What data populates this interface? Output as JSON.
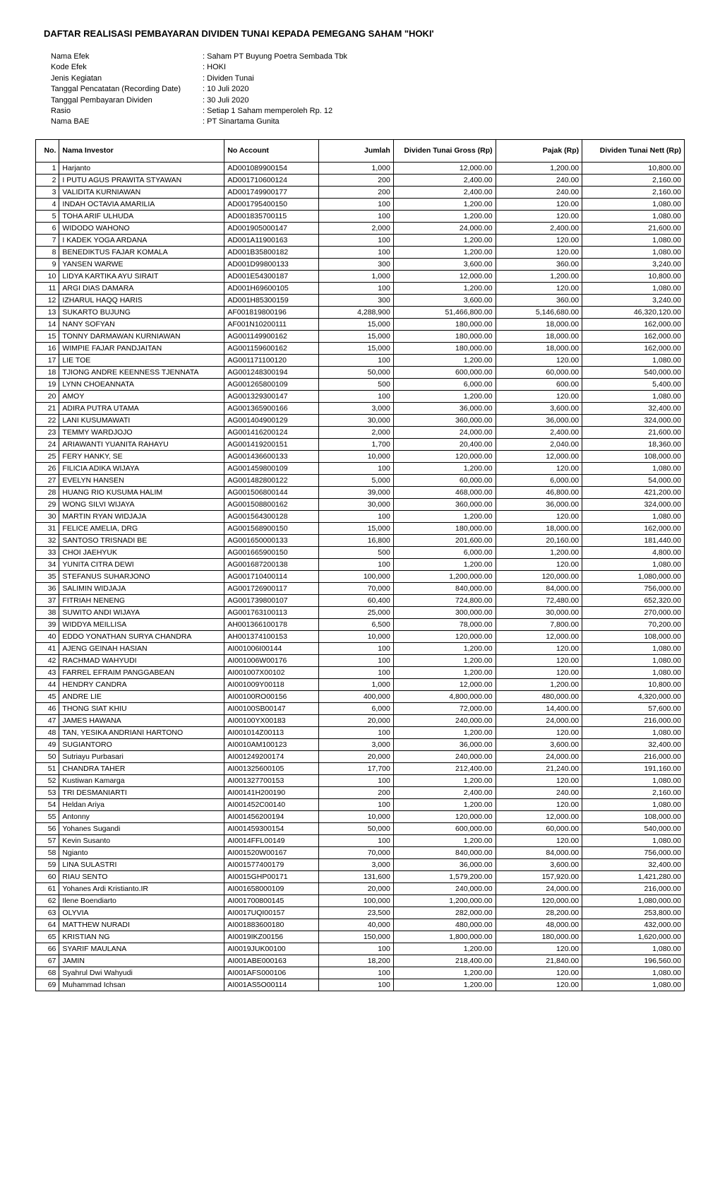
{
  "title": "DAFTAR REALISASI PEMBAYARAN DIVIDEN TUNAI KEPADA PEMEGANG SAHAM \"HOKI'",
  "info": {
    "rows": [
      {
        "label": "Nama Efek",
        "value": "Saham PT Buyung Poetra Sembada Tbk"
      },
      {
        "label": "Kode Efek",
        "value": "HOKI"
      },
      {
        "label": "Jenis Kegiatan",
        "value": "Dividen Tunai"
      },
      {
        "label": "Tanggal Pencatatan (Recording Date)",
        "value": "10 Juli 2020"
      },
      {
        "label": "Tanggal Pembayaran Dividen",
        "value": "30 Juli 2020"
      },
      {
        "label": "Rasio",
        "value": "Setiap 1 Saham memperoleh Rp. 12"
      },
      {
        "label": "Nama BAE",
        "value": "PT Sinartama Gunita"
      }
    ]
  },
  "table": {
    "headers": {
      "no": "No.",
      "nama": "Nama Investor",
      "acc": "No Account",
      "jumlah": "Jumlah",
      "gross": "Dividen Tunai Gross (Rp)",
      "pajak": "Pajak (Rp)",
      "nett": "Dividen Tunai Nett (Rp)"
    },
    "rows": [
      {
        "no": "1",
        "nama": "Harjanto",
        "acc": "AD001089900154",
        "jumlah": "1,000",
        "gross": "12,000.00",
        "pajak": "1,200.00",
        "nett": "10,800.00"
      },
      {
        "no": "2",
        "nama": "I PUTU AGUS PRAWITA STYAWAN",
        "acc": "AD001710600124",
        "jumlah": "200",
        "gross": "2,400.00",
        "pajak": "240.00",
        "nett": "2,160.00"
      },
      {
        "no": "3",
        "nama": "VALIDITA KURNIAWAN",
        "acc": "AD001749900177",
        "jumlah": "200",
        "gross": "2,400.00",
        "pajak": "240.00",
        "nett": "2,160.00"
      },
      {
        "no": "4",
        "nama": "INDAH OCTAVIA AMARILIA",
        "acc": "AD001795400150",
        "jumlah": "100",
        "gross": "1,200.00",
        "pajak": "120.00",
        "nett": "1,080.00"
      },
      {
        "no": "5",
        "nama": "TOHA ARIF ULHUDA",
        "acc": "AD001835700115",
        "jumlah": "100",
        "gross": "1,200.00",
        "pajak": "120.00",
        "nett": "1,080.00"
      },
      {
        "no": "6",
        "nama": "WIDODO WAHONO",
        "acc": "AD001905000147",
        "jumlah": "2,000",
        "gross": "24,000.00",
        "pajak": "2,400.00",
        "nett": "21,600.00"
      },
      {
        "no": "7",
        "nama": "I KADEK YOGA ARDANA",
        "acc": "AD001A11900163",
        "jumlah": "100",
        "gross": "1,200.00",
        "pajak": "120.00",
        "nett": "1,080.00"
      },
      {
        "no": "8",
        "nama": "BENEDIKTUS FAJAR KOMALA",
        "acc": "AD001B35800182",
        "jumlah": "100",
        "gross": "1,200.00",
        "pajak": "120.00",
        "nett": "1,080.00"
      },
      {
        "no": "9",
        "nama": "YANSEN WARWE",
        "acc": "AD001D99800133",
        "jumlah": "300",
        "gross": "3,600.00",
        "pajak": "360.00",
        "nett": "3,240.00"
      },
      {
        "no": "10",
        "nama": "LIDYA KARTIKA AYU SIRAIT",
        "acc": "AD001E54300187",
        "jumlah": "1,000",
        "gross": "12,000.00",
        "pajak": "1,200.00",
        "nett": "10,800.00"
      },
      {
        "no": "11",
        "nama": "ARGI DIAS DAMARA",
        "acc": "AD001H69600105",
        "jumlah": "100",
        "gross": "1,200.00",
        "pajak": "120.00",
        "nett": "1,080.00"
      },
      {
        "no": "12",
        "nama": "IZHARUL HAQQ HARIS",
        "acc": "AD001H85300159",
        "jumlah": "300",
        "gross": "3,600.00",
        "pajak": "360.00",
        "nett": "3,240.00"
      },
      {
        "no": "13",
        "nama": "SUKARTO BUJUNG",
        "acc": "AF001819800196",
        "jumlah": "4,288,900",
        "gross": "51,466,800.00",
        "pajak": "5,146,680.00",
        "nett": "46,320,120.00"
      },
      {
        "no": "14",
        "nama": "NANY SOFYAN",
        "acc": "AF001N10200111",
        "jumlah": "15,000",
        "gross": "180,000.00",
        "pajak": "18,000.00",
        "nett": "162,000.00"
      },
      {
        "no": "15",
        "nama": "TONNY DARMAWAN KURNIAWAN",
        "acc": "AG001149900162",
        "jumlah": "15,000",
        "gross": "180,000.00",
        "pajak": "18,000.00",
        "nett": "162,000.00"
      },
      {
        "no": "16",
        "nama": "WIMPIE FAJAR PANDJAITAN",
        "acc": "AG001159600162",
        "jumlah": "15,000",
        "gross": "180,000.00",
        "pajak": "18,000.00",
        "nett": "162,000.00"
      },
      {
        "no": "17",
        "nama": "LIE TOE",
        "acc": "AG001171100120",
        "jumlah": "100",
        "gross": "1,200.00",
        "pajak": "120.00",
        "nett": "1,080.00"
      },
      {
        "no": "18",
        "nama": "TJIONG ANDRE KEENNESS TJENNATA",
        "acc": "AG001248300194",
        "jumlah": "50,000",
        "gross": "600,000.00",
        "pajak": "60,000.00",
        "nett": "540,000.00"
      },
      {
        "no": "19",
        "nama": "LYNN CHOEANNATA",
        "acc": "AG001265800109",
        "jumlah": "500",
        "gross": "6,000.00",
        "pajak": "600.00",
        "nett": "5,400.00"
      },
      {
        "no": "20",
        "nama": "AMOY",
        "acc": "AG001329300147",
        "jumlah": "100",
        "gross": "1,200.00",
        "pajak": "120.00",
        "nett": "1,080.00"
      },
      {
        "no": "21",
        "nama": "ADIRA PUTRA UTAMA",
        "acc": "AG001365900166",
        "jumlah": "3,000",
        "gross": "36,000.00",
        "pajak": "3,600.00",
        "nett": "32,400.00"
      },
      {
        "no": "22",
        "nama": "LANI KUSUMAWATI",
        "acc": "AG001404900129",
        "jumlah": "30,000",
        "gross": "360,000.00",
        "pajak": "36,000.00",
        "nett": "324,000.00"
      },
      {
        "no": "23",
        "nama": "TEMMY WARDJOJO",
        "acc": "AG001416200124",
        "jumlah": "2,000",
        "gross": "24,000.00",
        "pajak": "2,400.00",
        "nett": "21,600.00"
      },
      {
        "no": "24",
        "nama": "ARIAWANTI YUANITA RAHAYU",
        "acc": "AG001419200151",
        "jumlah": "1,700",
        "gross": "20,400.00",
        "pajak": "2,040.00",
        "nett": "18,360.00"
      },
      {
        "no": "25",
        "nama": "FERY HANKY, SE",
        "acc": "AG001436600133",
        "jumlah": "10,000",
        "gross": "120,000.00",
        "pajak": "12,000.00",
        "nett": "108,000.00"
      },
      {
        "no": "26",
        "nama": "FILICIA ADIKA WIJAYA",
        "acc": "AG001459800109",
        "jumlah": "100",
        "gross": "1,200.00",
        "pajak": "120.00",
        "nett": "1,080.00"
      },
      {
        "no": "27",
        "nama": "EVELYN HANSEN",
        "acc": "AG001482800122",
        "jumlah": "5,000",
        "gross": "60,000.00",
        "pajak": "6,000.00",
        "nett": "54,000.00"
      },
      {
        "no": "28",
        "nama": "HUANG RIO KUSUMA HALIM",
        "acc": "AG001506800144",
        "jumlah": "39,000",
        "gross": "468,000.00",
        "pajak": "46,800.00",
        "nett": "421,200.00"
      },
      {
        "no": "29",
        "nama": "WONG SILVI WIJAYA",
        "acc": "AG001508800162",
        "jumlah": "30,000",
        "gross": "360,000.00",
        "pajak": "36,000.00",
        "nett": "324,000.00"
      },
      {
        "no": "30",
        "nama": "MARTIN RYAN WIDJAJA",
        "acc": "AG001564300128",
        "jumlah": "100",
        "gross": "1,200.00",
        "pajak": "120.00",
        "nett": "1,080.00"
      },
      {
        "no": "31",
        "nama": "FELICE AMELIA, DRG",
        "acc": "AG001568900150",
        "jumlah": "15,000",
        "gross": "180,000.00",
        "pajak": "18,000.00",
        "nett": "162,000.00"
      },
      {
        "no": "32",
        "nama": "SANTOSO TRISNADI BE",
        "acc": "AG001650000133",
        "jumlah": "16,800",
        "gross": "201,600.00",
        "pajak": "20,160.00",
        "nett": "181,440.00"
      },
      {
        "no": "33",
        "nama": "CHOI JAEHYUK",
        "acc": "AG001665900150",
        "jumlah": "500",
        "gross": "6,000.00",
        "pajak": "1,200.00",
        "nett": "4,800.00"
      },
      {
        "no": "34",
        "nama": "YUNITA CITRA DEWI",
        "acc": "AG001687200138",
        "jumlah": "100",
        "gross": "1,200.00",
        "pajak": "120.00",
        "nett": "1,080.00"
      },
      {
        "no": "35",
        "nama": "STEFANUS SUHARJONO",
        "acc": "AG001710400114",
        "jumlah": "100,000",
        "gross": "1,200,000.00",
        "pajak": "120,000.00",
        "nett": "1,080,000.00"
      },
      {
        "no": "36",
        "nama": "SALIMIN WIDJAJA",
        "acc": "AG001726900117",
        "jumlah": "70,000",
        "gross": "840,000.00",
        "pajak": "84,000.00",
        "nett": "756,000.00"
      },
      {
        "no": "37",
        "nama": "FITRIAH NENENG",
        "acc": "AG001739800107",
        "jumlah": "60,400",
        "gross": "724,800.00",
        "pajak": "72,480.00",
        "nett": "652,320.00"
      },
      {
        "no": "38",
        "nama": "SUWITO ANDI WIJAYA",
        "acc": "AG001763100113",
        "jumlah": "25,000",
        "gross": "300,000.00",
        "pajak": "30,000.00",
        "nett": "270,000.00"
      },
      {
        "no": "39",
        "nama": "WIDDYA MEILLISA",
        "acc": "AH001366100178",
        "jumlah": "6,500",
        "gross": "78,000.00",
        "pajak": "7,800.00",
        "nett": "70,200.00"
      },
      {
        "no": "40",
        "nama": "EDDO YONATHAN SURYA CHANDRA",
        "acc": "AH001374100153",
        "jumlah": "10,000",
        "gross": "120,000.00",
        "pajak": "12,000.00",
        "nett": "108,000.00"
      },
      {
        "no": "41",
        "nama": "AJENG GEINAH HASIAN",
        "acc": "AI001006I00144",
        "jumlah": "100",
        "gross": "1,200.00",
        "pajak": "120.00",
        "nett": "1,080.00"
      },
      {
        "no": "42",
        "nama": "RACHMAD WAHYUDI",
        "acc": "AI001006W00176",
        "jumlah": "100",
        "gross": "1,200.00",
        "pajak": "120.00",
        "nett": "1,080.00"
      },
      {
        "no": "43",
        "nama": "FARREL EFRAIM PANGGABEAN",
        "acc": "AI001007X00102",
        "jumlah": "100",
        "gross": "1,200.00",
        "pajak": "120.00",
        "nett": "1,080.00"
      },
      {
        "no": "44",
        "nama": "HENDRY CANDRA",
        "acc": "AI001009Y00118",
        "jumlah": "1,000",
        "gross": "12,000.00",
        "pajak": "1,200.00",
        "nett": "10,800.00"
      },
      {
        "no": "45",
        "nama": "ANDRE LIE",
        "acc": "AI00100RO00156",
        "jumlah": "400,000",
        "gross": "4,800,000.00",
        "pajak": "480,000.00",
        "nett": "4,320,000.00"
      },
      {
        "no": "46",
        "nama": "THONG SIAT KHIU",
        "acc": "AI00100SB00147",
        "jumlah": "6,000",
        "gross": "72,000.00",
        "pajak": "14,400.00",
        "nett": "57,600.00"
      },
      {
        "no": "47",
        "nama": "JAMES HAWANA",
        "acc": "AI00100YX00183",
        "jumlah": "20,000",
        "gross": "240,000.00",
        "pajak": "24,000.00",
        "nett": "216,000.00"
      },
      {
        "no": "48",
        "nama": "TAN, YESIKA ANDRIANI HARTONO",
        "acc": "AI001014Z00113",
        "jumlah": "100",
        "gross": "1,200.00",
        "pajak": "120.00",
        "nett": "1,080.00"
      },
      {
        "no": "49",
        "nama": "SUGIANTORO",
        "acc": "AI0010AM100123",
        "jumlah": "3,000",
        "gross": "36,000.00",
        "pajak": "3,600.00",
        "nett": "32,400.00"
      },
      {
        "no": "50",
        "nama": "Sutriayu Purbasari",
        "acc": "AI001249200174",
        "jumlah": "20,000",
        "gross": "240,000.00",
        "pajak": "24,000.00",
        "nett": "216,000.00"
      },
      {
        "no": "51",
        "nama": "CHANDRA TAHER",
        "acc": "AI001325600105",
        "jumlah": "17,700",
        "gross": "212,400.00",
        "pajak": "21,240.00",
        "nett": "191,160.00"
      },
      {
        "no": "52",
        "nama": "Kustiwan Kamarga",
        "acc": "AI001327700153",
        "jumlah": "100",
        "gross": "1,200.00",
        "pajak": "120.00",
        "nett": "1,080.00"
      },
      {
        "no": "53",
        "nama": "TRI DESMANIARTI",
        "acc": "AI00141H200190",
        "jumlah": "200",
        "gross": "2,400.00",
        "pajak": "240.00",
        "nett": "2,160.00"
      },
      {
        "no": "54",
        "nama": "Heldan Ariya",
        "acc": "AI001452C00140",
        "jumlah": "100",
        "gross": "1,200.00",
        "pajak": "120.00",
        "nett": "1,080.00"
      },
      {
        "no": "55",
        "nama": "Antonny",
        "acc": "AI001456200194",
        "jumlah": "10,000",
        "gross": "120,000.00",
        "pajak": "12,000.00",
        "nett": "108,000.00"
      },
      {
        "no": "56",
        "nama": "Yohanes Sugandi",
        "acc": "AI001459300154",
        "jumlah": "50,000",
        "gross": "600,000.00",
        "pajak": "60,000.00",
        "nett": "540,000.00"
      },
      {
        "no": "57",
        "nama": "Kevin Susanto",
        "acc": "AI0014FFL00149",
        "jumlah": "100",
        "gross": "1,200.00",
        "pajak": "120.00",
        "nett": "1,080.00"
      },
      {
        "no": "58",
        "nama": "Ngianto",
        "acc": "AI001520W00167",
        "jumlah": "70,000",
        "gross": "840,000.00",
        "pajak": "84,000.00",
        "nett": "756,000.00"
      },
      {
        "no": "59",
        "nama": "LINA SULASTRI",
        "acc": "AI001577400179",
        "jumlah": "3,000",
        "gross": "36,000.00",
        "pajak": "3,600.00",
        "nett": "32,400.00"
      },
      {
        "no": "60",
        "nama": "RIAU SENTO",
        "acc": "AI0015GHP00171",
        "jumlah": "131,600",
        "gross": "1,579,200.00",
        "pajak": "157,920.00",
        "nett": "1,421,280.00"
      },
      {
        "no": "61",
        "nama": "Yohanes Ardi Kristianto.IR",
        "acc": "AI001658000109",
        "jumlah": "20,000",
        "gross": "240,000.00",
        "pajak": "24,000.00",
        "nett": "216,000.00"
      },
      {
        "no": "62",
        "nama": "Ilene Boendiarto",
        "acc": "AI001700800145",
        "jumlah": "100,000",
        "gross": "1,200,000.00",
        "pajak": "120,000.00",
        "nett": "1,080,000.00"
      },
      {
        "no": "63",
        "nama": "OLYVIA",
        "acc": "AI0017UQI00157",
        "jumlah": "23,500",
        "gross": "282,000.00",
        "pajak": "28,200.00",
        "nett": "253,800.00"
      },
      {
        "no": "64",
        "nama": "MATTHEW NURADI",
        "acc": "AI001883600180",
        "jumlah": "40,000",
        "gross": "480,000.00",
        "pajak": "48,000.00",
        "nett": "432,000.00"
      },
      {
        "no": "65",
        "nama": "KRISTIAN NG",
        "acc": "AI0019IKZ00156",
        "jumlah": "150,000",
        "gross": "1,800,000.00",
        "pajak": "180,000.00",
        "nett": "1,620,000.00"
      },
      {
        "no": "66",
        "nama": "SYARIF MAULANA",
        "acc": "AI0019JUK00100",
        "jumlah": "100",
        "gross": "1,200.00",
        "pajak": "120.00",
        "nett": "1,080.00"
      },
      {
        "no": "67",
        "nama": "JAMIN",
        "acc": "AI001ABE000163",
        "jumlah": "18,200",
        "gross": "218,400.00",
        "pajak": "21,840.00",
        "nett": "196,560.00"
      },
      {
        "no": "68",
        "nama": "Syahrul Dwi Wahyudi",
        "acc": "AI001AFS000106",
        "jumlah": "100",
        "gross": "1,200.00",
        "pajak": "120.00",
        "nett": "1,080.00"
      },
      {
        "no": "69",
        "nama": "Muhammad Ichsan",
        "acc": "AI001AS5O00114",
        "jumlah": "100",
        "gross": "1,200.00",
        "pajak": "120.00",
        "nett": "1,080.00"
      }
    ]
  }
}
